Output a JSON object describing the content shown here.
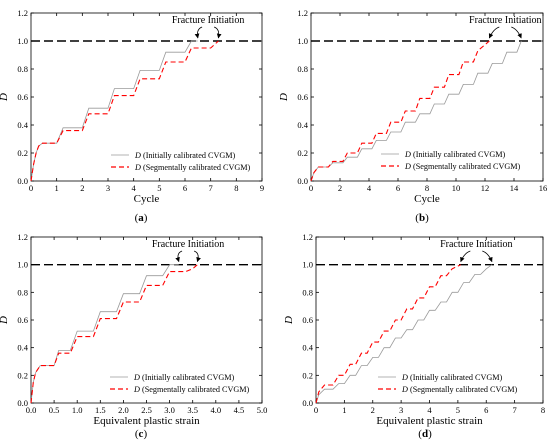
{
  "figure": {
    "panel_labels": [
      "(a)",
      "(b)",
      "(c)",
      "(d)"
    ]
  },
  "colors": {
    "initial_series": "#9a9a9a",
    "segmented_series": "#ff0000",
    "threshold_line": "#000000",
    "axis": "#000000"
  },
  "chart_data": [
    {
      "type": "line",
      "panel": "(a)",
      "xlabel": "Cycle",
      "ylabel": "D",
      "xlim": [
        0,
        9
      ],
      "ylim": [
        0,
        1.2
      ],
      "xticks": [
        0,
        1,
        2,
        3,
        4,
        5,
        6,
        7,
        8,
        9
      ],
      "xtick_labels": [
        "0",
        "1",
        "2",
        "3",
        "4",
        "5",
        "6",
        "7",
        "8",
        "9"
      ],
      "yticks": [
        0,
        0.2,
        0.4,
        0.6,
        0.8,
        1.0,
        1.2
      ],
      "ytick_labels": [
        "0.0",
        "0.2",
        "0.4",
        "0.6",
        "0.8",
        "1.0",
        "1.2"
      ],
      "threshold": 1.0,
      "annotation": "Fracture Initiation",
      "annotation_targets": [
        [
          6.5,
          1.0
        ],
        [
          7.3,
          1.0
        ]
      ],
      "legend": [
        "D (Initially calibrated CVGM)",
        "D (Segmentally calibrated CVGM)"
      ],
      "legend_position": "center-right",
      "series": [
        {
          "name": "D (Initially calibrated CVGM)",
          "style": "solid",
          "x": [
            0,
            0.1,
            0.2,
            0.3,
            0.45,
            1.0,
            1.25,
            1.45,
            2.0,
            2.25,
            2.45,
            3.0,
            3.25,
            3.45,
            4.0,
            4.25,
            4.45,
            5.0,
            5.25,
            5.45,
            6.0,
            6.25,
            6.5
          ],
          "y": [
            0,
            0.12,
            0.2,
            0.25,
            0.27,
            0.27,
            0.38,
            0.38,
            0.38,
            0.52,
            0.52,
            0.52,
            0.66,
            0.66,
            0.66,
            0.79,
            0.79,
            0.79,
            0.92,
            0.92,
            0.92,
            1.0,
            1.0
          ]
        },
        {
          "name": "D (Segmentally calibrated CVGM)",
          "style": "dashed",
          "x": [
            0,
            0.1,
            0.2,
            0.3,
            0.45,
            1.0,
            1.25,
            1.45,
            2.0,
            2.25,
            2.45,
            3.0,
            3.25,
            3.45,
            4.0,
            4.25,
            4.45,
            5.0,
            5.25,
            5.45,
            6.0,
            6.25,
            6.45,
            7.0,
            7.3
          ],
          "y": [
            0,
            0.12,
            0.2,
            0.25,
            0.27,
            0.27,
            0.36,
            0.36,
            0.36,
            0.48,
            0.48,
            0.48,
            0.61,
            0.61,
            0.61,
            0.73,
            0.73,
            0.73,
            0.85,
            0.85,
            0.85,
            0.95,
            0.95,
            0.95,
            1.0
          ]
        }
      ]
    },
    {
      "type": "line",
      "panel": "(b)",
      "xlabel": "Cycle",
      "ylabel": "D",
      "xlim": [
        0,
        16
      ],
      "ylim": [
        0,
        1.2
      ],
      "xticks": [
        0,
        2,
        4,
        6,
        8,
        10,
        12,
        14,
        16
      ],
      "xtick_labels": [
        "0",
        "2",
        "4",
        "6",
        "8",
        "10",
        "12",
        "14",
        "16"
      ],
      "yticks": [
        0,
        0.2,
        0.4,
        0.6,
        0.8,
        1.0,
        1.2
      ],
      "ytick_labels": [
        "0.0",
        "0.2",
        "0.4",
        "0.6",
        "0.8",
        "1.0",
        "1.2"
      ],
      "threshold": 1.0,
      "annotation": "Fracture Initiation",
      "annotation_targets": [
        [
          12.3,
          1.0
        ],
        [
          14.5,
          1.0
        ]
      ],
      "legend": [
        "D (Initially calibrated CVGM)",
        "D (Segmentally calibrated CVGM)"
      ],
      "legend_position": "bottom-right",
      "series": [
        {
          "name": "D (Initially calibrated CVGM)",
          "style": "solid",
          "x": [
            0,
            0.2,
            0.5,
            1.2,
            1.5,
            2.2,
            2.5,
            3.2,
            3.5,
            4.2,
            4.5,
            5.2,
            5.5,
            6.2,
            6.5,
            7.2,
            7.5,
            8.2,
            8.5,
            9.2,
            9.5,
            10.2,
            10.5,
            11.2,
            11.5,
            12.2,
            12.5,
            13.2,
            13.5,
            14.2,
            14.5
          ],
          "y": [
            0,
            0.06,
            0.1,
            0.1,
            0.13,
            0.13,
            0.17,
            0.17,
            0.23,
            0.23,
            0.29,
            0.29,
            0.35,
            0.35,
            0.42,
            0.42,
            0.48,
            0.48,
            0.55,
            0.55,
            0.62,
            0.62,
            0.69,
            0.69,
            0.77,
            0.77,
            0.84,
            0.84,
            0.92,
            0.92,
            1.0
          ]
        },
        {
          "name": "D (Segmentally calibrated CVGM)",
          "style": "dashed",
          "x": [
            0,
            0.2,
            0.5,
            1.2,
            1.5,
            2.2,
            2.5,
            3.2,
            3.5,
            4.2,
            4.5,
            5.2,
            5.5,
            6.2,
            6.5,
            7.2,
            7.5,
            8.2,
            8.5,
            9.2,
            9.5,
            10.2,
            10.5,
            11.2,
            11.5,
            12.3
          ],
          "y": [
            0,
            0.06,
            0.1,
            0.1,
            0.14,
            0.14,
            0.2,
            0.2,
            0.27,
            0.27,
            0.34,
            0.34,
            0.42,
            0.42,
            0.5,
            0.5,
            0.59,
            0.59,
            0.67,
            0.67,
            0.76,
            0.76,
            0.85,
            0.85,
            0.93,
            1.0
          ]
        }
      ]
    },
    {
      "type": "line",
      "panel": "(c)",
      "xlabel": "Equivalent plastic strain",
      "ylabel": "D",
      "xlim": [
        0,
        5.0
      ],
      "ylim": [
        0,
        1.2
      ],
      "xticks": [
        0,
        0.5,
        1.0,
        1.5,
        2.0,
        2.5,
        3.0,
        3.5,
        4.0,
        4.5,
        5.0
      ],
      "xtick_labels": [
        "0.0",
        "0.5",
        "1.0",
        "1.5",
        "2.0",
        "2.5",
        "3.0",
        "3.5",
        "4.0",
        "4.5",
        "5.0"
      ],
      "yticks": [
        0,
        0.2,
        0.4,
        0.6,
        0.8,
        1.0,
        1.2
      ],
      "ytick_labels": [
        "0.0",
        "0.2",
        "0.4",
        "0.6",
        "0.8",
        "1.0",
        "1.2"
      ],
      "threshold": 1.0,
      "annotation": "Fracture Initiation",
      "annotation_targets": [
        [
          3.2,
          1.0
        ],
        [
          3.6,
          1.0
        ]
      ],
      "legend": [
        "D (Initially calibrated CVGM)",
        "D (Segmentally calibrated CVGM)"
      ],
      "legend_position": "bottom-right",
      "series": [
        {
          "name": "D (Initially calibrated CVGM)",
          "style": "solid",
          "x": [
            0,
            0.05,
            0.1,
            0.2,
            0.5,
            0.6,
            0.85,
            1.0,
            1.35,
            1.5,
            1.85,
            2.0,
            2.35,
            2.5,
            2.85,
            3.0,
            3.2
          ],
          "y": [
            0,
            0.15,
            0.22,
            0.27,
            0.27,
            0.38,
            0.38,
            0.52,
            0.52,
            0.66,
            0.66,
            0.79,
            0.79,
            0.92,
            0.92,
            1.0,
            1.0
          ]
        },
        {
          "name": "D (Segmentally calibrated CVGM)",
          "style": "dashed",
          "x": [
            0,
            0.05,
            0.1,
            0.2,
            0.5,
            0.6,
            0.85,
            1.0,
            1.35,
            1.5,
            1.85,
            2.0,
            2.35,
            2.5,
            2.85,
            3.0,
            3.35,
            3.5,
            3.6
          ],
          "y": [
            0,
            0.15,
            0.22,
            0.27,
            0.27,
            0.36,
            0.36,
            0.48,
            0.48,
            0.61,
            0.61,
            0.73,
            0.73,
            0.85,
            0.85,
            0.95,
            0.95,
            0.97,
            1.0
          ]
        }
      ]
    },
    {
      "type": "line",
      "panel": "(d)",
      "xlabel": "Equivalent plastic strain",
      "ylabel": "D",
      "xlim": [
        0,
        8
      ],
      "ylim": [
        0,
        1.2
      ],
      "xticks": [
        0,
        1,
        2,
        3,
        4,
        5,
        6,
        7,
        8
      ],
      "xtick_labels": [
        "0",
        "1",
        "2",
        "3",
        "4",
        "5",
        "6",
        "7",
        "8"
      ],
      "yticks": [
        0,
        0.2,
        0.4,
        0.6,
        0.8,
        1.0,
        1.2
      ],
      "ytick_labels": [
        "0.0",
        "0.2",
        "0.4",
        "0.6",
        "0.8",
        "1.0",
        "1.2"
      ],
      "threshold": 1.0,
      "annotation": "Fracture Initiation",
      "annotation_targets": [
        [
          5.1,
          1.0
        ],
        [
          6.2,
          1.0
        ]
      ],
      "legend": [
        "D (Initially calibrated CVGM)",
        "D (Segmentally calibrated CVGM)"
      ],
      "legend_position": "bottom-right",
      "series": [
        {
          "name": "D (Initially calibrated CVGM)",
          "style": "solid",
          "x": [
            0,
            0.1,
            0.3,
            0.6,
            0.8,
            1.0,
            1.2,
            1.4,
            1.6,
            1.8,
            2.0,
            2.2,
            2.4,
            2.6,
            2.8,
            3.0,
            3.2,
            3.4,
            3.6,
            3.8,
            4.0,
            4.2,
            4.4,
            4.6,
            4.8,
            5.0,
            5.2,
            5.4,
            5.6,
            5.8,
            6.0,
            6.2
          ],
          "y": [
            0,
            0.06,
            0.1,
            0.1,
            0.14,
            0.14,
            0.2,
            0.2,
            0.27,
            0.27,
            0.33,
            0.33,
            0.4,
            0.4,
            0.47,
            0.47,
            0.53,
            0.53,
            0.6,
            0.6,
            0.67,
            0.67,
            0.73,
            0.73,
            0.8,
            0.8,
            0.87,
            0.87,
            0.93,
            0.93,
            0.97,
            1.0
          ]
        },
        {
          "name": "D (Segmentally calibrated CVGM)",
          "style": "dashed",
          "x": [
            0,
            0.1,
            0.3,
            0.6,
            0.8,
            1.0,
            1.2,
            1.4,
            1.6,
            1.8,
            2.0,
            2.2,
            2.4,
            2.6,
            2.8,
            3.0,
            3.2,
            3.4,
            3.6,
            3.8,
            4.0,
            4.2,
            4.4,
            4.6,
            4.8,
            5.1
          ],
          "y": [
            0,
            0.08,
            0.13,
            0.13,
            0.2,
            0.2,
            0.28,
            0.28,
            0.36,
            0.36,
            0.44,
            0.44,
            0.52,
            0.52,
            0.6,
            0.6,
            0.68,
            0.68,
            0.76,
            0.76,
            0.84,
            0.84,
            0.92,
            0.92,
            0.97,
            1.0
          ]
        }
      ]
    }
  ]
}
